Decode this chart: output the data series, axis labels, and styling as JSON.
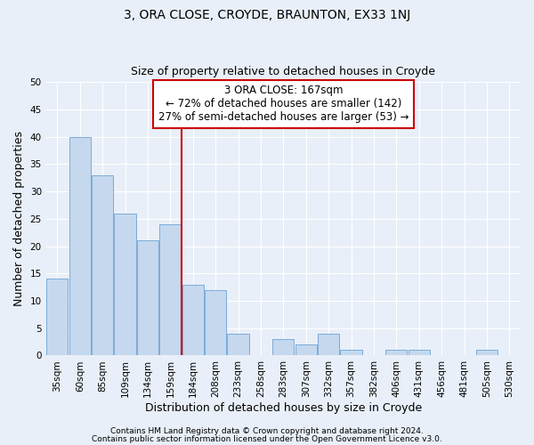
{
  "title": "3, ORA CLOSE, CROYDE, BRAUNTON, EX33 1NJ",
  "subtitle": "Size of property relative to detached houses in Croyde",
  "xlabel": "Distribution of detached houses by size in Croyde",
  "ylabel": "Number of detached properties",
  "categories": [
    "35sqm",
    "60sqm",
    "85sqm",
    "109sqm",
    "134sqm",
    "159sqm",
    "184sqm",
    "208sqm",
    "233sqm",
    "258sqm",
    "283sqm",
    "307sqm",
    "332sqm",
    "357sqm",
    "382sqm",
    "406sqm",
    "431sqm",
    "456sqm",
    "481sqm",
    "505sqm",
    "530sqm"
  ],
  "values": [
    14,
    40,
    33,
    26,
    21,
    24,
    13,
    12,
    4,
    0,
    3,
    2,
    4,
    1,
    0,
    1,
    1,
    0,
    0,
    1,
    0
  ],
  "bar_color": "#c5d8ee",
  "bar_edge_color": "#6ba3d6",
  "background_color": "#e8eff8",
  "plot_bg_color": "#e8eff8",
  "grid_color": "#ffffff",
  "annotation_line1": "3 ORA CLOSE: 167sqm",
  "annotation_line2": "← 72% of detached houses are smaller (142)",
  "annotation_line3": "27% of semi-detached houses are larger (53) →",
  "vline_index": 6,
  "vline_color": "#cc0000",
  "annotation_box_facecolor": "#ffffff",
  "annotation_box_edgecolor": "#cc0000",
  "ylim": [
    0,
    50
  ],
  "yticks": [
    0,
    5,
    10,
    15,
    20,
    25,
    30,
    35,
    40,
    45,
    50
  ],
  "footer1": "Contains HM Land Registry data © Crown copyright and database right 2024.",
  "footer2": "Contains public sector information licensed under the Open Government Licence v3.0.",
  "title_fontsize": 10,
  "subtitle_fontsize": 9,
  "axis_label_fontsize": 9,
  "tick_fontsize": 7.5,
  "annotation_fontsize": 8.5,
  "footer_fontsize": 6.5
}
